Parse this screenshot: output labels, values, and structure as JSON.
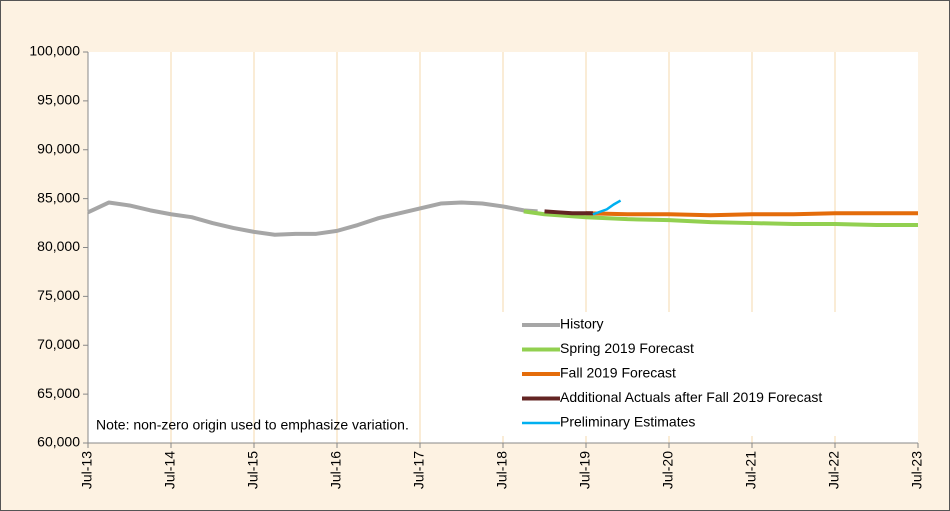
{
  "chart_data": {
    "type": "line",
    "note": "Note: non-zero origin used to emphasize variation.",
    "xlim": [
      "Jul-13",
      "Jul-23"
    ],
    "xticks": [
      "Jul-13",
      "Jul-14",
      "Jul-15",
      "Jul-16",
      "Jul-17",
      "Jul-18",
      "Jul-19",
      "Jul-20",
      "Jul-21",
      "Jul-22",
      "Jul-23"
    ],
    "ylim": [
      60000,
      100000
    ],
    "yticks": [
      {
        "value": 60000,
        "label": "60,000"
      },
      {
        "value": 65000,
        "label": "65,000"
      },
      {
        "value": 70000,
        "label": "70,000"
      },
      {
        "value": 75000,
        "label": "75,000"
      },
      {
        "value": 80000,
        "label": "80,000"
      },
      {
        "value": 85000,
        "label": "85,000"
      },
      {
        "value": 90000,
        "label": "90,000"
      },
      {
        "value": 95000,
        "label": "95,000"
      },
      {
        "value": 100000,
        "label": "100,000"
      }
    ],
    "grid": "x",
    "legend": "lower right",
    "series": [
      {
        "name": "History",
        "color": "#a6a6a6",
        "x": [
          "Jul-13",
          "Oct-13",
          "Jan-14",
          "Apr-14",
          "Jul-14",
          "Oct-14",
          "Jan-15",
          "Apr-15",
          "Jul-15",
          "Oct-15",
          "Jan-16",
          "Apr-16",
          "Jul-16",
          "Oct-16",
          "Jan-17",
          "Apr-17",
          "Jul-17",
          "Oct-17",
          "Jan-18",
          "Apr-18",
          "Jul-18",
          "Oct-18",
          "Dec-18"
        ],
        "values": [
          83600,
          84600,
          84300,
          83800,
          83400,
          83100,
          82500,
          82000,
          81600,
          81300,
          81400,
          81400,
          81700,
          82300,
          83000,
          83500,
          84000,
          84500,
          84600,
          84500,
          84200,
          83800,
          83700
        ]
      },
      {
        "name": "Spring 2019 Forecast",
        "color": "#92d050",
        "x": [
          "Oct-18",
          "Jan-19",
          "Jul-19",
          "Jan-20",
          "Jul-20",
          "Jan-21",
          "Jul-21",
          "Jan-22",
          "Jul-22",
          "Jan-23",
          "Jul-23"
        ],
        "values": [
          83700,
          83400,
          83100,
          82900,
          82800,
          82600,
          82500,
          82400,
          82400,
          82300,
          82300
        ]
      },
      {
        "name": "Fall 2019 Forecast",
        "color": "#e46c0a",
        "x": [
          "Jul-19",
          "Jan-20",
          "Jul-20",
          "Jan-21",
          "Jul-21",
          "Jan-22",
          "Jul-22",
          "Jan-23",
          "Jul-23"
        ],
        "values": [
          83500,
          83400,
          83400,
          83300,
          83400,
          83400,
          83500,
          83500,
          83500
        ]
      },
      {
        "name": "Additional Actuals after Fall 2019 Forecast",
        "color": "#632523",
        "x": [
          "Jan-19",
          "Mar-19",
          "May-19",
          "Aug-19"
        ],
        "values": [
          83700,
          83600,
          83500,
          83500
        ]
      },
      {
        "name": "Preliminary Estimates",
        "color": "#00b0f0",
        "x": [
          "Aug-19",
          "Oct-19",
          "Nov-19",
          "Dec-19"
        ],
        "values": [
          83400,
          83900,
          84400,
          84800
        ]
      }
    ]
  }
}
